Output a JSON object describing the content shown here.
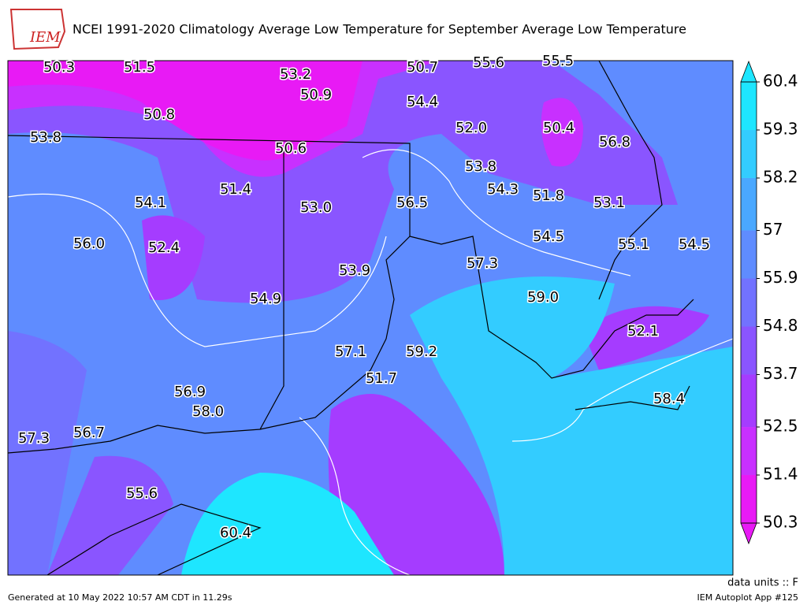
{
  "logo": "IEM",
  "title": "NCEI 1991-2020 Climatology Average Low Temperature for September Average Low Temperature",
  "labels": [
    "50.3",
    "51.5",
    "53.2",
    "50.7",
    "55.6",
    "55.5",
    "50.9",
    "54.4",
    "50.8",
    "52.0",
    "50.4",
    "53.8",
    "50.6",
    "56.8",
    "53.8",
    "51.4",
    "54.3",
    "51.8",
    "54.1",
    "53.0",
    "56.5",
    "53.1",
    "54.5",
    "56.0",
    "52.4",
    "55.1",
    "54.5",
    "57.3",
    "53.9",
    "59.0",
    "54.9",
    "52.1",
    "57.1",
    "59.2",
    "51.7",
    "56.9",
    "58.4",
    "58.0",
    "57.3",
    "56.7",
    "55.6",
    "60.4"
  ],
  "colorbar": {
    "ticks": [
      60.4,
      59.3,
      58.2,
      57,
      55.9,
      54.8,
      53.7,
      52.5,
      51.4,
      50.3
    ],
    "colors": [
      "#1ee6ff",
      "#33ccff",
      "#4aa8ff",
      "#5f8cff",
      "#7272ff",
      "#8a55ff",
      "#a53cff",
      "#c830ff",
      "#e81af5"
    ]
  },
  "units": "data units :: F",
  "footer_left": "Generated at 10 May 2022 10:57 AM CDT in 11.29s",
  "footer_right": "IEM Autoplot App #125"
}
